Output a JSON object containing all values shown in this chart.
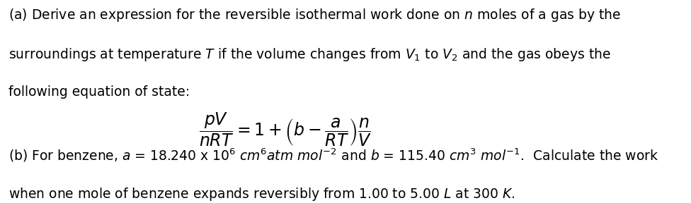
{
  "figsize": [
    9.76,
    2.88
  ],
  "dpi": 100,
  "background_color": "#ffffff",
  "line1": "(a) Derive an expression for the reversible isothermal work done on $n$ moles of a gas by the",
  "line2": "surroundings at temperature $T$ if the volume changes from $V_1$ to $V_2$ and the gas obeys the",
  "line3": "following equation of state:",
  "equation": "$\\dfrac{pV}{nRT} = 1 + \\left(b - \\dfrac{a}{RT}\\right)\\dfrac{n}{V}$",
  "line4": "(b) For benzene, $a$ = 18.240 x 10$^6$ $cm^6$$atm$ $mol^{-2}$ and $b$ = 115.40 $cm^3$ $mol^{-1}$.  Calculate the work",
  "line5": "when one mole of benzene expands reversibly from 1.00 to 5.00 $L$ at 300 $K$.",
  "text_color": "#000000",
  "fontsize_text": 13.5,
  "fontsize_eq": 17
}
